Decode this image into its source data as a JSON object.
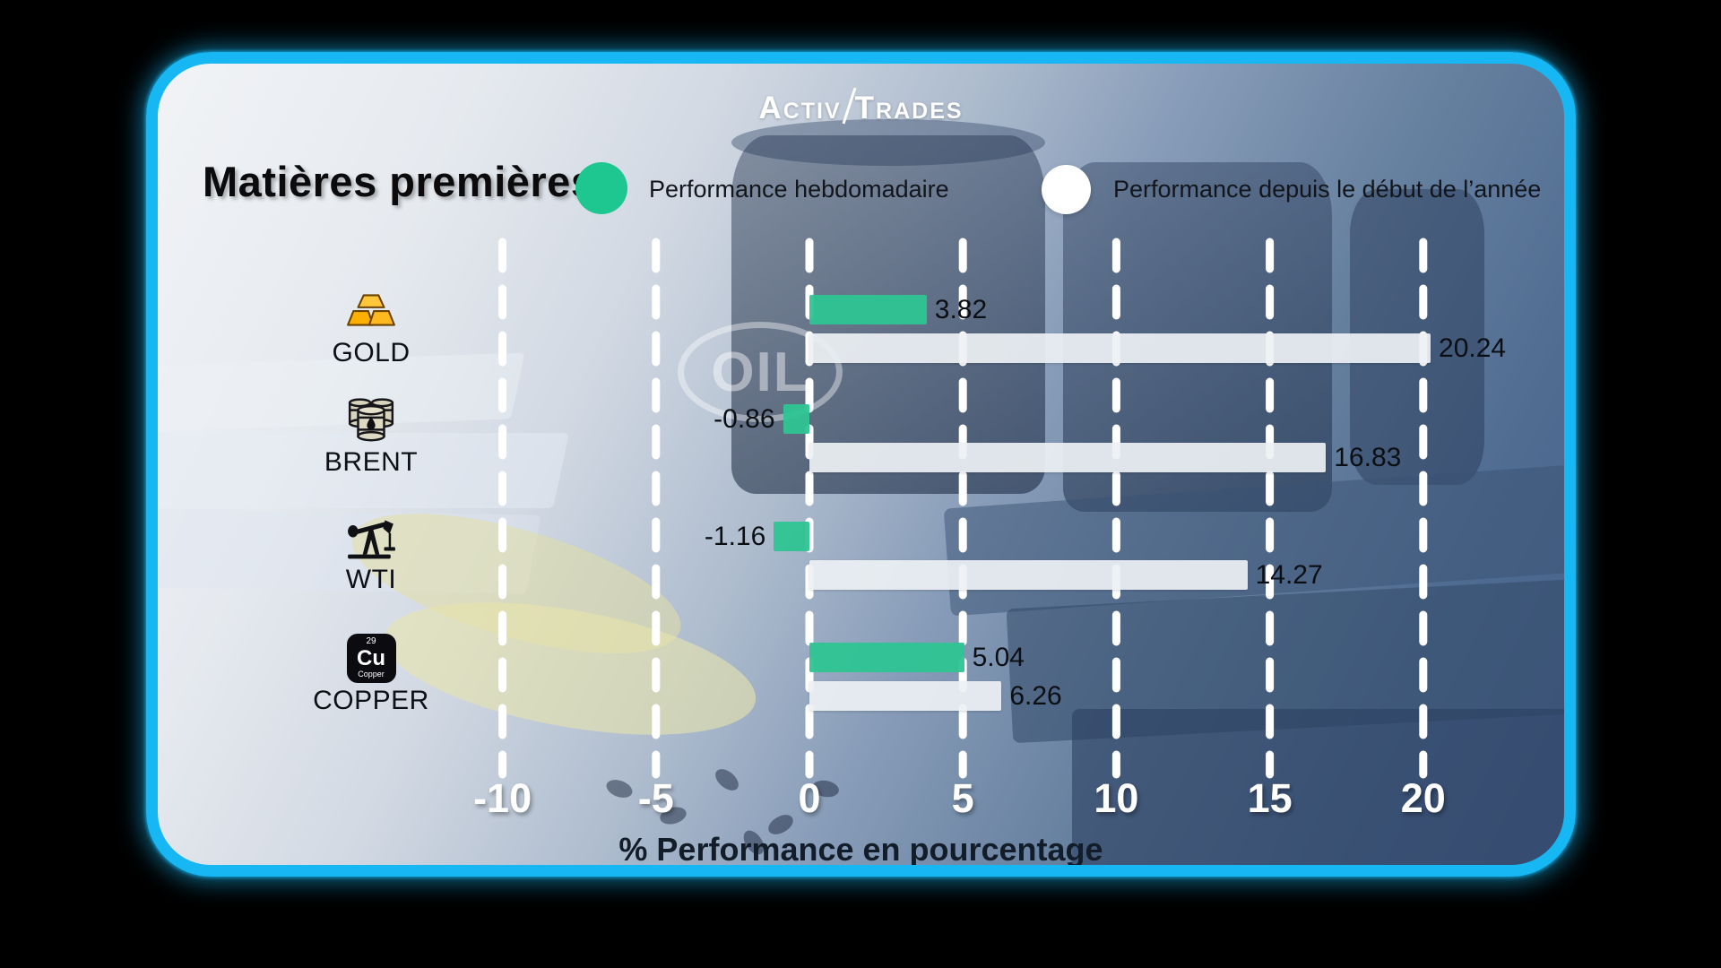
{
  "brand": {
    "word1": "ACTIV",
    "word2": "TRADES"
  },
  "header": {
    "title": "Matières premières"
  },
  "legend": {
    "weekly": {
      "label": "Performance hebdomadaire",
      "color": "#1DC78F"
    },
    "ytd": {
      "label": "Performance depuis le début de l’année",
      "color": "#FFFFFF"
    }
  },
  "watermark": {
    "text": "OIL"
  },
  "copper_icon": {
    "number": "29",
    "symbol": "Cu",
    "name": "Copper"
  },
  "card": {
    "border_color": "#16B7F2"
  },
  "chart_data": {
    "type": "bar",
    "orientation": "horizontal",
    "title": "Matières premières",
    "categories": [
      "GOLD",
      "BRENT",
      "WTI",
      "COPPER"
    ],
    "icons": [
      "gold-bars",
      "oil-barrels",
      "pump-jack",
      "copper-element"
    ],
    "series": [
      {
        "name": "Performance hebdomadaire",
        "color": "#2EC492",
        "values": [
          3.82,
          -0.86,
          -1.16,
          5.04
        ],
        "labels": [
          "3.82",
          "-0.86",
          "-1.16",
          "5.04"
        ]
      },
      {
        "name": "Performance depuis le début de l’année",
        "color": "#EDF1F5",
        "values": [
          20.24,
          16.83,
          14.27,
          6.26
        ],
        "labels": [
          "20.24",
          "16.83",
          "14.27",
          "6.26"
        ]
      }
    ],
    "xlabel": "% Performance en pourcentage",
    "ylabel": "",
    "ticks": [
      -10,
      -5,
      0,
      5,
      10,
      15,
      20
    ],
    "tick_labels": [
      "-10",
      "-5",
      "0",
      "5",
      "10",
      "15",
      "20"
    ],
    "xlim": [
      -12.5,
      25.3
    ],
    "grid": "dashed-vertical-white",
    "legend_position": "top"
  }
}
